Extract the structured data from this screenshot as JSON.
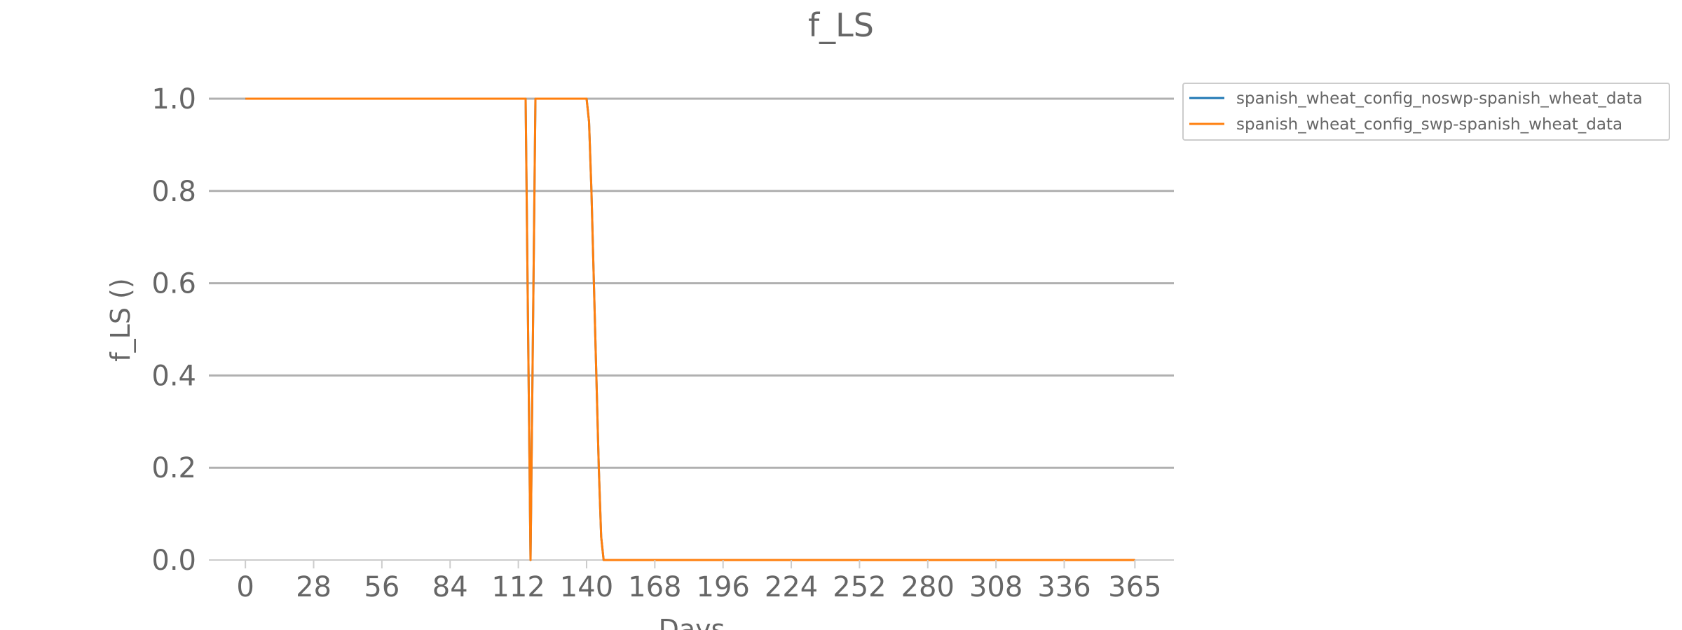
{
  "chart_data": {
    "type": "line",
    "title": "f_LS",
    "xlabel": "Days",
    "ylabel": "f_LS ()",
    "xlim": [
      -15,
      381
    ],
    "ylim": [
      0,
      1.0
    ],
    "x_ticks": [
      0,
      28,
      56,
      84,
      112,
      140,
      168,
      196,
      224,
      252,
      280,
      308,
      336,
      365
    ],
    "y_ticks": [
      0.0,
      0.2,
      0.4,
      0.6,
      0.8,
      1.0
    ],
    "y_tick_labels": [
      "0.0",
      "0.2",
      "0.4",
      "0.6",
      "0.8",
      "1.0"
    ],
    "grid": "horizontal",
    "legend_position": "upper-right-outside",
    "series": [
      {
        "name": "spanish_wheat_config_noswp-spanish_wheat_data",
        "color": "#1f77b4",
        "x": [
          0,
          115,
          116,
          117,
          118,
          119,
          120,
          140,
          141,
          142,
          143,
          144,
          145,
          146,
          147,
          365
        ],
        "y": [
          1.0,
          1.0,
          0.5,
          0.0,
          0.5,
          1.0,
          1.0,
          1.0,
          0.95,
          0.8,
          0.6,
          0.4,
          0.2,
          0.05,
          0.0,
          0.0
        ]
      },
      {
        "name": "spanish_wheat_config_swp-spanish_wheat_data",
        "color": "#ff7f0e",
        "x": [
          0,
          115,
          116,
          117,
          118,
          119,
          120,
          140,
          141,
          142,
          143,
          144,
          145,
          146,
          147,
          365
        ],
        "y": [
          1.0,
          1.0,
          0.5,
          0.0,
          0.5,
          1.0,
          1.0,
          1.0,
          0.95,
          0.8,
          0.6,
          0.4,
          0.2,
          0.05,
          0.0,
          0.0
        ]
      }
    ]
  }
}
